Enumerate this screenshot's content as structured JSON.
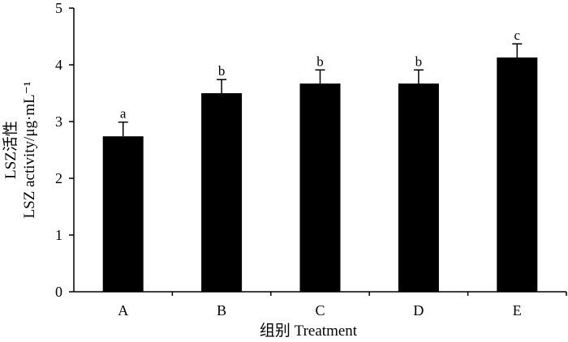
{
  "chart_data": {
    "type": "bar",
    "title": "",
    "xlabel": "组别 Treatment",
    "ylabel_lines": [
      "LSZ活性",
      "LSZ activity/μg·mL⁻¹"
    ],
    "categories": [
      "A",
      "B",
      "C",
      "D",
      "E"
    ],
    "values": [
      2.74,
      3.5,
      3.67,
      3.67,
      4.13
    ],
    "errors": [
      0.25,
      0.24,
      0.24,
      0.24,
      0.24
    ],
    "significance": [
      "a",
      "b",
      "b",
      "b",
      "c"
    ],
    "ylim": [
      0,
      5
    ],
    "yticks": [
      "0",
      "1",
      "2",
      "3",
      "4",
      "5"
    ],
    "bar_color": "#000000",
    "grid": false,
    "legend": "none"
  }
}
